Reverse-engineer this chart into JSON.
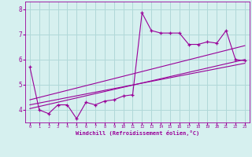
{
  "xlabel": "Windchill (Refroidissement éolien,°C)",
  "ylabel": "",
  "background_color": "#d6f0ef",
  "grid_color": "#b0d8d8",
  "line_color": "#990099",
  "xlim": [
    -0.5,
    23.5
  ],
  "ylim": [
    3.5,
    8.3
  ],
  "x_ticks": [
    0,
    1,
    2,
    3,
    4,
    5,
    6,
    7,
    8,
    9,
    10,
    11,
    12,
    13,
    14,
    15,
    16,
    17,
    18,
    19,
    20,
    21,
    22,
    23
  ],
  "y_ticks": [
    4,
    5,
    6,
    7,
    8
  ],
  "main_data_x": [
    0,
    1,
    2,
    3,
    4,
    5,
    6,
    7,
    8,
    9,
    10,
    11,
    12,
    13,
    14,
    15,
    16,
    17,
    18,
    19,
    20,
    21,
    22,
    23
  ],
  "main_data_y": [
    5.7,
    4.0,
    3.85,
    4.2,
    4.2,
    3.65,
    4.3,
    4.2,
    4.35,
    4.4,
    4.55,
    4.6,
    7.85,
    7.15,
    7.05,
    7.05,
    7.05,
    6.6,
    6.6,
    6.7,
    6.65,
    7.15,
    6.0,
    5.95
  ],
  "reg_line1_x": [
    0,
    23
  ],
  "reg_line1_y": [
    4.05,
    6.0
  ],
  "reg_line2_x": [
    0,
    23
  ],
  "reg_line2_y": [
    4.2,
    5.85
  ],
  "reg_line3_x": [
    0,
    23
  ],
  "reg_line3_y": [
    4.4,
    6.55
  ],
  "figsize": [
    3.2,
    2.0
  ],
  "dpi": 100
}
